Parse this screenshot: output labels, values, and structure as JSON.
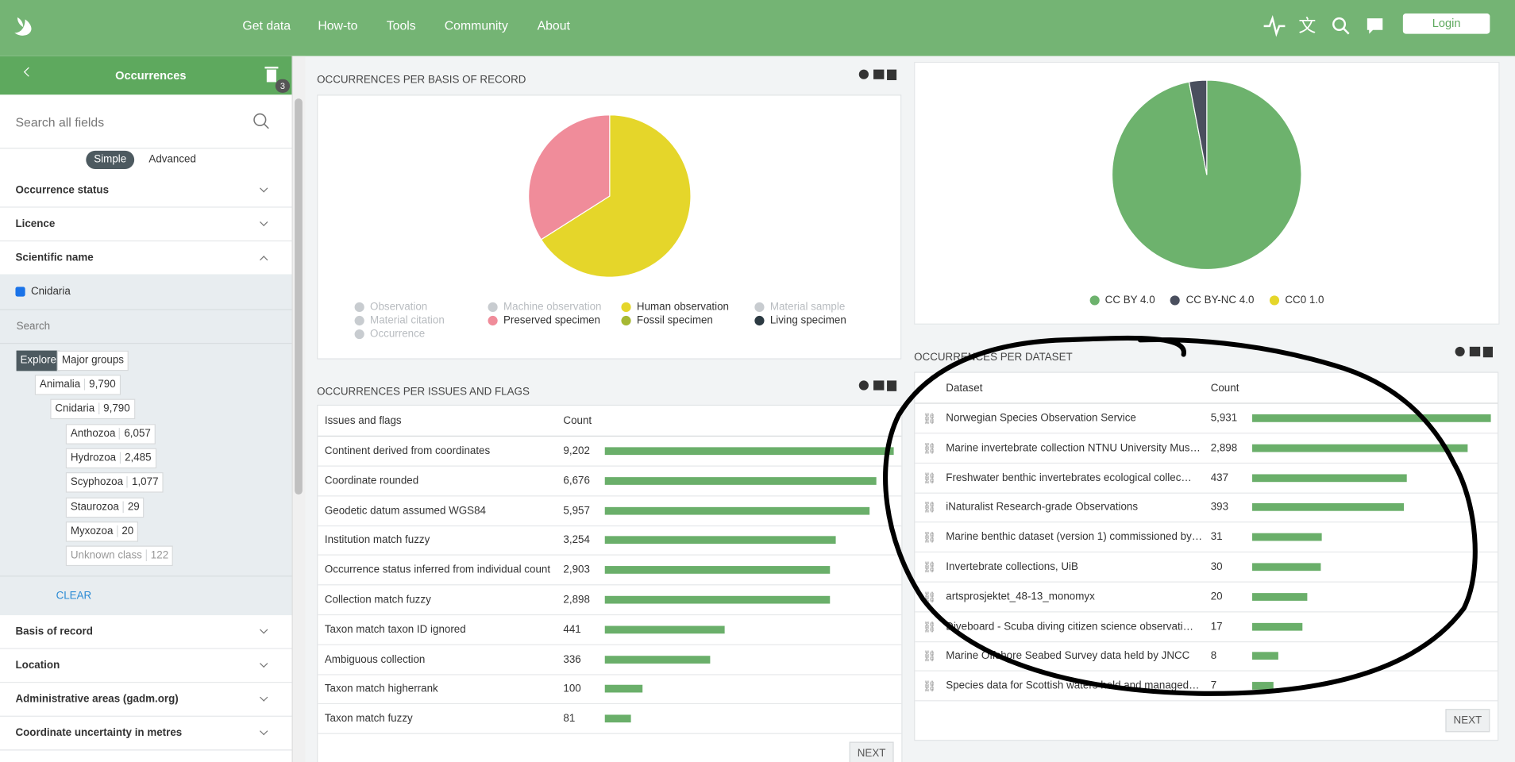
{
  "nav": {
    "links": [
      "Get data",
      "How-to",
      "Tools",
      "Community",
      "About"
    ],
    "login": "Login"
  },
  "sidebar": {
    "title": "Occurrences",
    "badge": "3",
    "search_placeholder": "Search all fields",
    "modes": [
      "Simple",
      "Advanced"
    ],
    "filters_top": [
      {
        "label": "Occurrence status",
        "expanded": false
      },
      {
        "label": "Licence",
        "expanded": false
      },
      {
        "label": "Scientific name",
        "expanded": true
      }
    ],
    "selected": "Cnidaria",
    "search": "Search",
    "tabs": [
      "Explore",
      "Major groups"
    ],
    "tree": [
      {
        "name": "Animalia",
        "count": "9,790",
        "children": [
          {
            "name": "Cnidaria",
            "count": "9,790",
            "children": [
              {
                "name": "Anthozoa",
                "count": "6,057"
              },
              {
                "name": "Hydrozoa",
                "count": "2,485"
              },
              {
                "name": "Scyphozoa",
                "count": "1,077"
              },
              {
                "name": "Staurozoa",
                "count": "29"
              },
              {
                "name": "Myxozoa",
                "count": "20"
              },
              {
                "name": "Unknown class",
                "count": "122",
                "muted": true
              }
            ]
          }
        ]
      }
    ],
    "clear": "CLEAR",
    "filters_bottom": [
      {
        "label": "Basis of record",
        "expanded": false
      },
      {
        "label": "Location",
        "expanded": false
      },
      {
        "label": "Administrative areas (gadm.org)",
        "expanded": false
      },
      {
        "label": "Coordinate uncertainty in metres",
        "expanded": false
      }
    ]
  },
  "basis_chart": {
    "title": "OCCURRENCES PER BASIS OF RECORD",
    "items": [
      {
        "name": "Observation",
        "color": "#c8ccd0",
        "value": 0,
        "muted": true
      },
      {
        "name": "Machine observation",
        "color": "#c8ccd0",
        "value": 0,
        "muted": true
      },
      {
        "name": "Human observation",
        "color": "#e5d62a",
        "value": 66,
        "muted": false
      },
      {
        "name": "Material sample",
        "color": "#c8ccd0",
        "value": 0,
        "muted": true
      },
      {
        "name": "Material citation",
        "color": "#c8ccd0",
        "value": 0,
        "muted": true
      },
      {
        "name": "Preserved specimen",
        "color": "#f08c9a",
        "value": 34,
        "muted": false
      },
      {
        "name": "Fossil specimen",
        "color": "#a6b833",
        "value": 0,
        "muted": false
      },
      {
        "name": "Living specimen",
        "color": "#2c3a42",
        "value": 0,
        "muted": false
      },
      {
        "name": "Occurrence",
        "color": "#c8ccd0",
        "value": 0,
        "muted": true
      }
    ]
  },
  "licence_chart": {
    "items": [
      {
        "name": "CC BY 4.0",
        "color": "#6db26d",
        "value": 97
      },
      {
        "name": "CC BY-NC 4.0",
        "color": "#4a4f5e",
        "value": 3
      },
      {
        "name": "CC0 1.0",
        "color": "#e5d62a",
        "value": 0
      }
    ]
  },
  "issues_table": {
    "title": "OCCURRENCES PER ISSUES AND FLAGS",
    "headers": [
      "Issues and flags",
      "Count"
    ],
    "next": "NEXT",
    "rows": [
      {
        "name": "Continent derived from coordinates",
        "count": 9202,
        "count_label": "9,202"
      },
      {
        "name": "Coordinate rounded",
        "count": 6676,
        "count_label": "6,676"
      },
      {
        "name": "Geodetic datum assumed WGS84",
        "count": 5957,
        "count_label": "5,957"
      },
      {
        "name": "Institution match fuzzy",
        "count": 3254,
        "count_label": "3,254"
      },
      {
        "name": "Occurrence status inferred from individual count",
        "count": 2903,
        "count_label": "2,903"
      },
      {
        "name": "Collection match fuzzy",
        "count": 2898,
        "count_label": "2,898"
      },
      {
        "name": "Taxon match taxon ID ignored",
        "count": 441,
        "count_label": "441"
      },
      {
        "name": "Ambiguous collection",
        "count": 336,
        "count_label": "336"
      },
      {
        "name": "Taxon match higherrank",
        "count": 100,
        "count_label": "100"
      },
      {
        "name": "Taxon match fuzzy",
        "count": 81,
        "count_label": "81"
      }
    ]
  },
  "dataset_table": {
    "title": "OCCURRENCES PER DATASET",
    "headers": [
      "Dataset",
      "Count"
    ],
    "next": "NEXT",
    "rows": [
      {
        "name": "Norwegian Species Observation Service",
        "count": 5931,
        "count_label": "5,931"
      },
      {
        "name": "Marine invertebrate collection NTNU University Mus…",
        "count": 2898,
        "count_label": "2,898"
      },
      {
        "name": "Freshwater benthic invertebrates ecological collec…",
        "count": 437,
        "count_label": "437"
      },
      {
        "name": "iNaturalist Research-grade Observations",
        "count": 393,
        "count_label": "393"
      },
      {
        "name": "Marine benthic dataset (version 1) commissioned by…",
        "count": 31,
        "count_label": "31"
      },
      {
        "name": "Invertebrate collections, UiB",
        "count": 30,
        "count_label": "30"
      },
      {
        "name": "artsprosjektet_48-13_monomyx",
        "count": 20,
        "count_label": "20"
      },
      {
        "name": "Diveboard - Scuba diving citizen science observati…",
        "count": 17,
        "count_label": "17"
      },
      {
        "name": "Marine Offshore Seabed Survey data held by JNCC",
        "count": 8,
        "count_label": "8"
      },
      {
        "name": "Species data for Scottish waters held and managed…",
        "count": 7,
        "count_label": "7"
      }
    ]
  }
}
